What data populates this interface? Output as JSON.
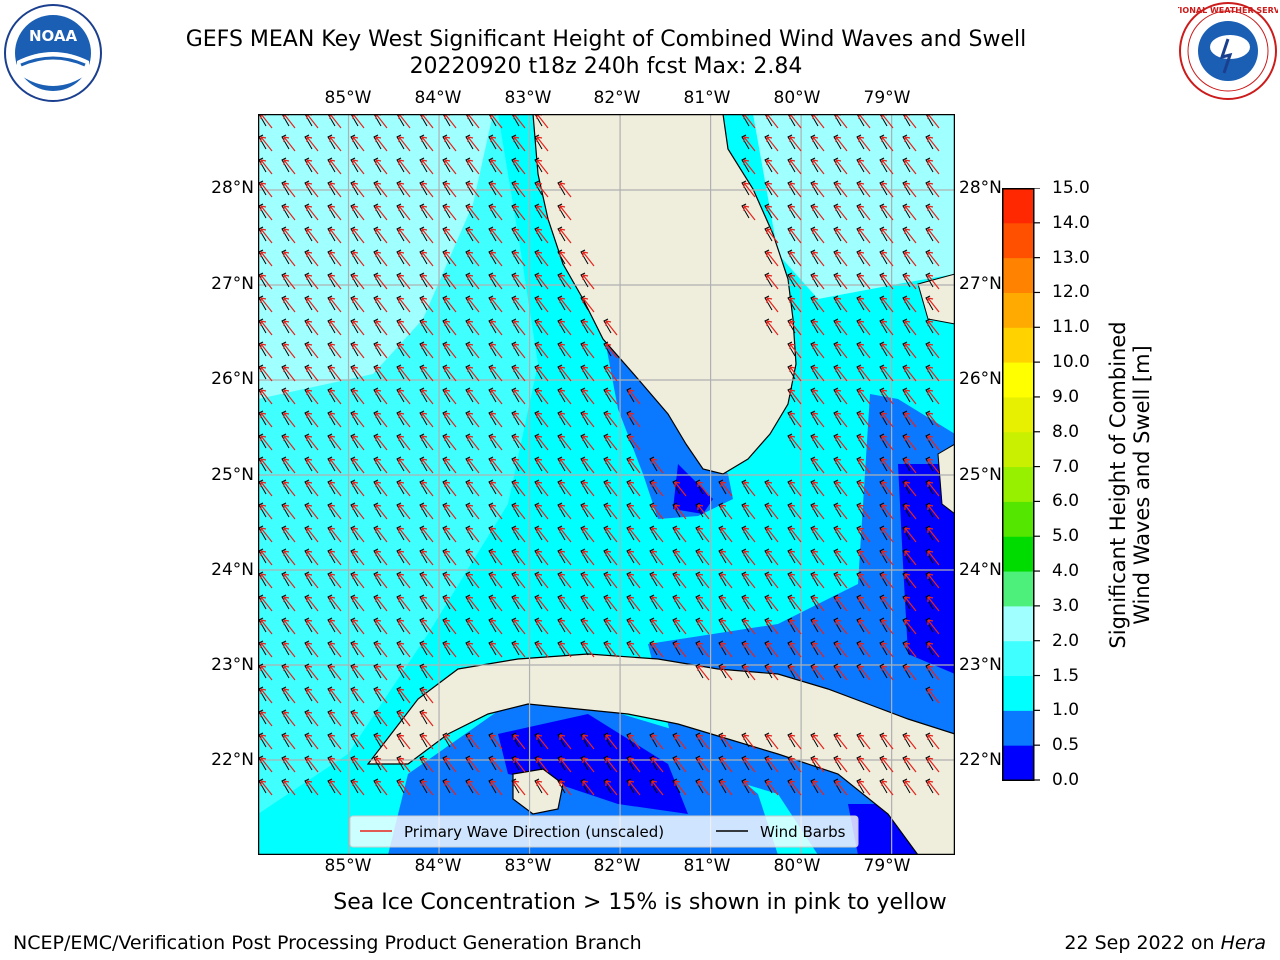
{
  "title": {
    "line1": "GEFS MEAN Key West Significant Height of Combined Wind Waves and Swell",
    "line2": "20220920 t18z 240h fcst   Max: 2.84"
  },
  "map": {
    "lon_ticks": [
      "85°W",
      "84°W",
      "83°W",
      "82°W",
      "81°W",
      "80°W",
      "79°W"
    ],
    "lat_ticks": [
      "28°N",
      "27°N",
      "26°N",
      "25°N",
      "24°N",
      "23°N",
      "22°N"
    ],
    "extent": {
      "lon_min": -86.0,
      "lon_max": -78.3,
      "lat_min": 21.0,
      "lat_max": 28.8
    },
    "grid": true,
    "land_color": "#efeddc",
    "legend": {
      "wave_label": "Primary Wave Direction (unscaled)",
      "wind_label": "Wind Barbs",
      "wave_color": "#e8231c",
      "wind_color": "#000000",
      "placement": "bottom-center"
    }
  },
  "colorbar": {
    "title_line1": "Significant Height of Combined",
    "title_line2": "Wind Waves and Swell [m]",
    "levels": [
      "0.0",
      "0.5",
      "1.0",
      "1.5",
      "2.0",
      "3.0",
      "4.0",
      "5.0",
      "6.0",
      "7.0",
      "8.0",
      "9.0",
      "10.0",
      "11.0",
      "12.0",
      "13.0",
      "14.0",
      "15.0"
    ],
    "colors": [
      "#0000ff",
      "#0a78ff",
      "#00ffff",
      "#40ffff",
      "#a0ffff",
      "#4cf07a",
      "#00dc00",
      "#55e600",
      "#96f000",
      "#c8f000",
      "#e6f000",
      "#ffff00",
      "#ffd200",
      "#ffaa00",
      "#ff8200",
      "#ff5000",
      "#ff2800"
    ]
  },
  "note": "Sea Ice Concentration > 15% is shown in pink to yellow",
  "footer": {
    "left": "NCEP/EMC/Verification Post Processing Product Generation Branch",
    "date": "22 Sep 2022 on ",
    "host": "Hera"
  },
  "logos": {
    "noaa_text": "NOAA",
    "nws_text": "NATIONAL WEATHER SERVICE"
  }
}
